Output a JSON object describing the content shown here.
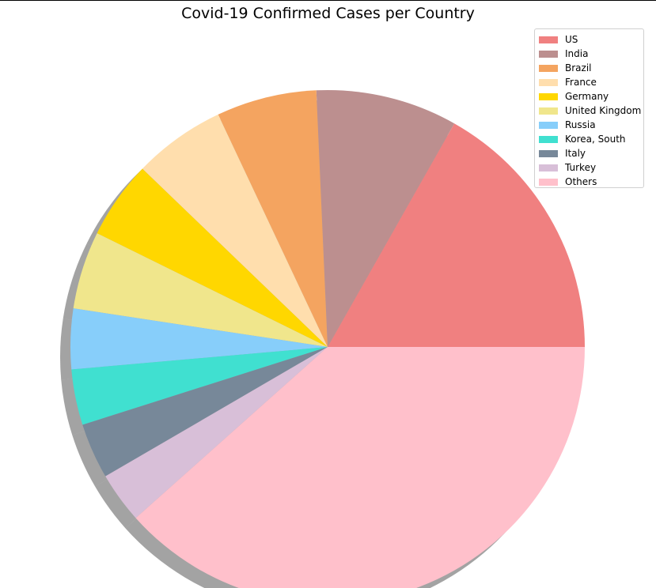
{
  "chart_data": {
    "type": "pie",
    "title": "Covid-19 Confirmed Cases per Country",
    "shadow": true,
    "start_angle_deg": 0,
    "direction": "counterclockwise",
    "legend_location": "upper right",
    "slices": [
      {
        "label": "US",
        "value": 16.8,
        "color": "#f08080"
      },
      {
        "label": "India",
        "value": 8.9,
        "color": "#bc8f8f"
      },
      {
        "label": "Brazil",
        "value": 6.3,
        "color": "#f4a460"
      },
      {
        "label": "France",
        "value": 5.8,
        "color": "#ffdead"
      },
      {
        "label": "Germany",
        "value": 4.9,
        "color": "#ffd700"
      },
      {
        "label": "United Kingdom",
        "value": 4.9,
        "color": "#f0e68c"
      },
      {
        "label": "Russia",
        "value": 3.8,
        "color": "#87cefa"
      },
      {
        "label": "Korea, South",
        "value": 3.5,
        "color": "#40e0d0"
      },
      {
        "label": "Italy",
        "value": 3.5,
        "color": "#778899"
      },
      {
        "label": "Turkey",
        "value": 3.2,
        "color": "#d8bfd8"
      },
      {
        "label": "Others",
        "value": 38.4,
        "color": "#ffc0cb"
      }
    ]
  }
}
